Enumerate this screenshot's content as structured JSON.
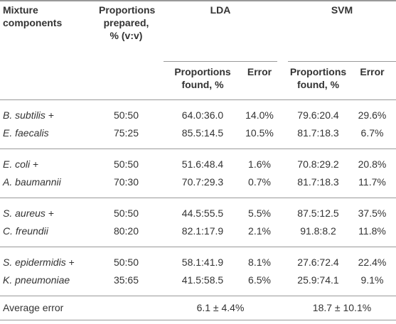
{
  "table": {
    "header": {
      "components": "Mixture components",
      "prepared": "Proportions prepared, % (v:v)",
      "lda": "LDA",
      "svm": "SVM",
      "sub": [
        "Proportions found, %",
        "Error",
        "Proportions found, %",
        "Error"
      ]
    },
    "groups": [
      [
        [
          {
            "name": "B. subtilis",
            "sep": "+"
          },
          "50:50",
          "64.0:36.0",
          "14.0%",
          "79.6:20.4",
          "29.6%"
        ],
        [
          {
            "name": "E. faecalis"
          },
          "75:25",
          "85.5:14.5",
          "10.5%",
          "81.7:18.3",
          "6.7%"
        ]
      ],
      [
        [
          {
            "name": "E. coli",
            "sep": "+"
          },
          "50:50",
          "51.6:48.4",
          "1.6%",
          "70.8:29.2",
          "20.8%"
        ],
        [
          {
            "name": "A. baumannii"
          },
          "70:30",
          "70.7:29.3",
          "0.7%",
          "81.7:18.3",
          "11.7%"
        ]
      ],
      [
        [
          {
            "name": "S. aureus",
            "sep": "+"
          },
          "50:50",
          "44.5:55.5",
          "5.5%",
          "87.5:12.5",
          "37.5%"
        ],
        [
          {
            "name": "C. freundii"
          },
          "80:20",
          "82.1:17.9",
          "2.1%",
          "91.8:8.2",
          "11.8%"
        ]
      ],
      [
        [
          {
            "name": "S. epidermidis",
            "sep": "+"
          },
          "50:50",
          "58.1:41.9",
          "8.1%",
          "27.6:72.4",
          "22.4%"
        ],
        [
          {
            "name": "K. pneumoniae"
          },
          "35:65",
          "41.5:58.5",
          "6.5%",
          "25.9:74.1",
          "9.1%"
        ]
      ]
    ],
    "average": {
      "label": "Average error",
      "lda": "6.1 ± 4.4%",
      "svm": "18.7 ± 10.1%"
    }
  }
}
